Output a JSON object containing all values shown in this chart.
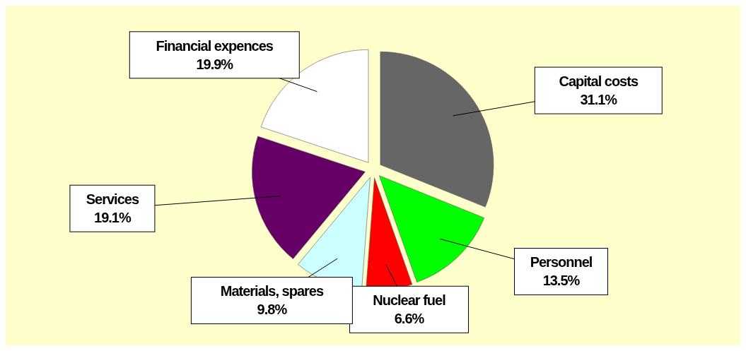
{
  "chart_data": {
    "type": "pie",
    "categories": [
      "Capital costs",
      "Personnel",
      "Nuclear fuel",
      "Materials, spares",
      "Services",
      "Financial expences"
    ],
    "values": [
      31.1,
      13.5,
      6.6,
      9.8,
      19.1,
      19.9
    ],
    "colors": [
      "#666666",
      "#00ff00",
      "#ff0000",
      "#ccffff",
      "#660066",
      "#ffffff"
    ],
    "value_labels": [
      "31.1%",
      "13.5%",
      "6.6%",
      "9.8%",
      "19.1%",
      "19.9%"
    ]
  }
}
